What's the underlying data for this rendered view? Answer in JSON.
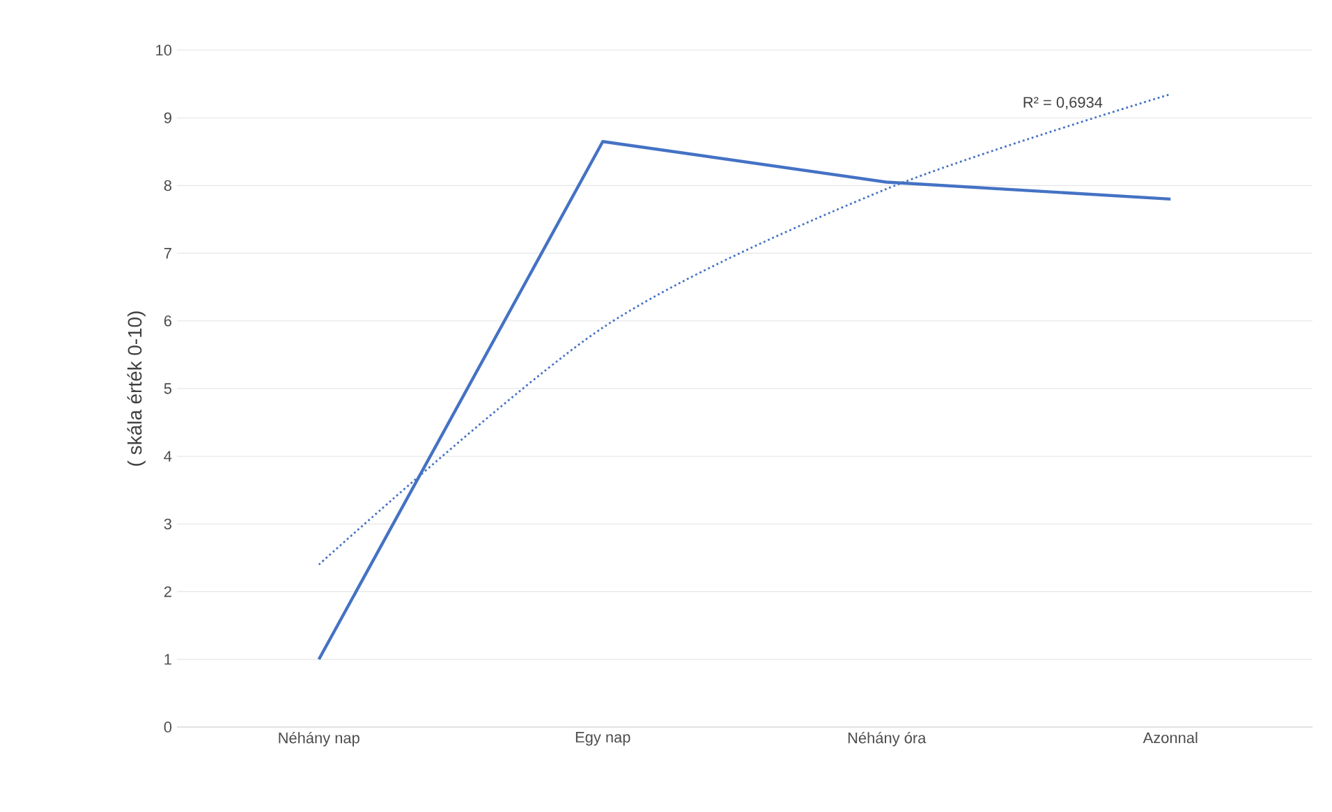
{
  "chart_data": {
    "type": "line",
    "ylabel": "( skála érték 0-10)",
    "categories": [
      "Néhány nap",
      "Egy nap",
      "Néhány óra",
      "Azonnal"
    ],
    "series": [
      {
        "color": "#4472c4",
        "values": [
          1.0,
          8.65,
          8.05,
          7.8
        ],
        "line_style": "solid"
      },
      {
        "color": "#4472c4",
        "values": [
          2.4,
          5.9,
          7.95,
          9.35
        ],
        "line_style": "dotted"
      }
    ],
    "annotations": [
      "R² = 0,6934"
    ],
    "ylim": [
      0,
      10
    ],
    "yticks": [
      0,
      1,
      2,
      3,
      4,
      5,
      6,
      7,
      8,
      9,
      10
    ],
    "grid": "y",
    "marker": "none"
  }
}
